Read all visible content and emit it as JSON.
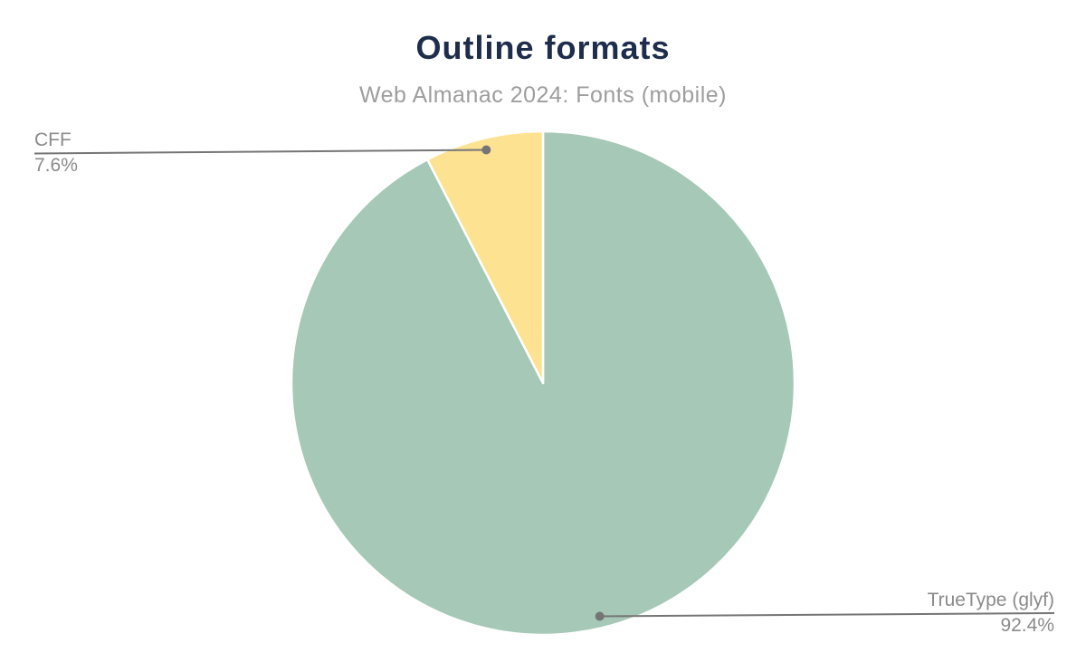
{
  "chart_data": {
    "type": "pie",
    "title": "Outline formats",
    "subtitle": "Web Almanac 2024: Fonts (mobile)",
    "total": 100,
    "start_angle_deg": 0,
    "direction": "clockwise",
    "legend": "none",
    "background": "#ffffff",
    "slices": [
      {
        "label": "TrueType (glyf)",
        "value": 92.4,
        "value_label": "92.4%",
        "color": "#a6c8b6",
        "callout_side": "bottom-right"
      },
      {
        "label": "CFF",
        "value": 7.6,
        "value_label": "7.6%",
        "color": "#fde292",
        "callout_side": "top-left"
      }
    ],
    "colors": {
      "title": "#1e2d4b",
      "subtitle": "#9e9e9e",
      "label": "#8b8b8b",
      "callout_line": "#757575",
      "slice_border": "#ffffff"
    }
  }
}
